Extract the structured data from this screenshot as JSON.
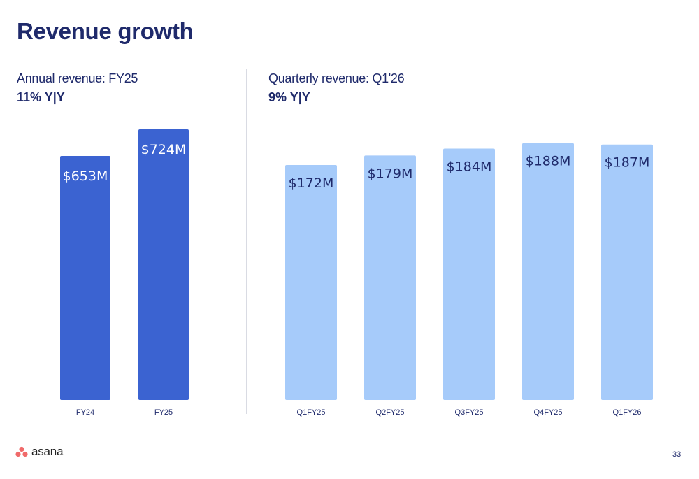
{
  "title": "Revenue growth",
  "colors": {
    "annual_bar": "#3b63d1",
    "quarterly_bar": "#a6cbfa",
    "title": "#1f2a6b",
    "brand": "#f06a6a"
  },
  "annual": {
    "title": "Annual revenue: FY25",
    "growth": "11% Y|Y"
  },
  "quarterly": {
    "title": "Quarterly revenue: Q1'26",
    "growth": "9% Y|Y"
  },
  "chart_data": [
    {
      "type": "bar",
      "title": "Annual revenue: FY25",
      "categories": [
        "FY24",
        "FY25"
      ],
      "values": [
        653,
        724
      ],
      "data_labels": [
        "$653M",
        "$724M"
      ],
      "unit": "$M",
      "grid": false
    },
    {
      "type": "bar",
      "title": "Quarterly revenue: Q1'26",
      "categories": [
        "Q1FY25",
        "Q2FY25",
        "Q3FY25",
        "Q4FY25",
        "Q1FY26"
      ],
      "values": [
        172,
        179,
        184,
        188,
        187
      ],
      "data_labels": [
        "$172M",
        "$179M",
        "$184M",
        "$188M",
        "$187M"
      ],
      "unit": "$M",
      "grid": false
    }
  ],
  "footer": {
    "logo_text": "asana",
    "logo_icon": "asana-logo-icon",
    "page_number": "33"
  }
}
